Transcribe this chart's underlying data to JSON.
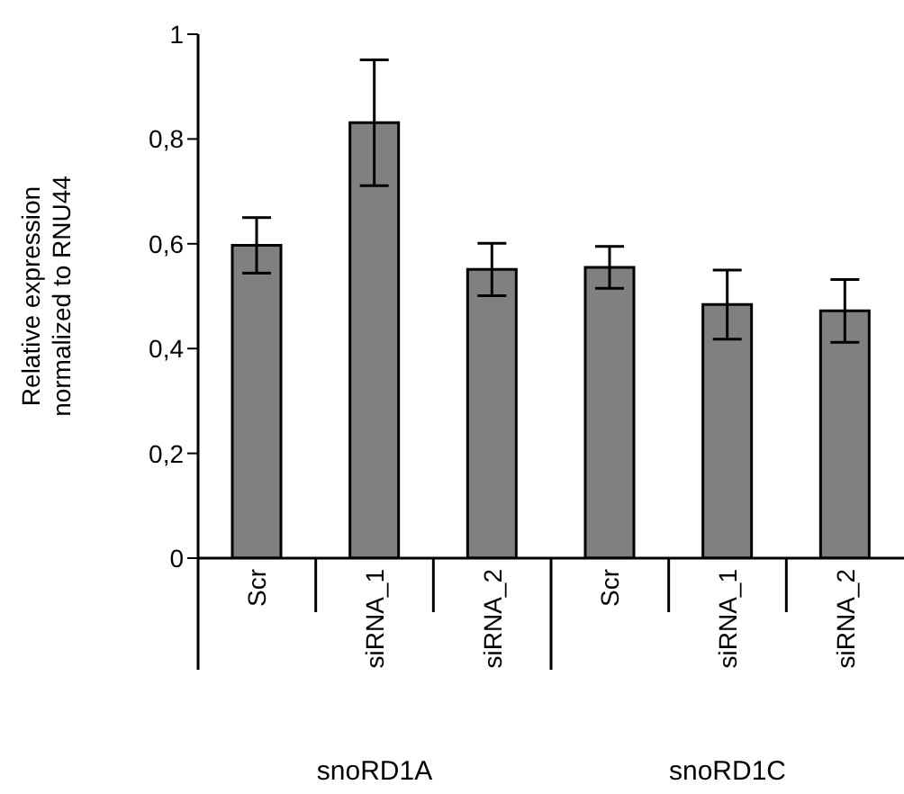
{
  "chart_data": {
    "type": "bar",
    "ylabel": "Relative expression normalized to RNU44",
    "categories": [
      "Scr",
      "siRNA_1",
      "siRNA_2",
      "Scr",
      "siRNA_1",
      "siRNA_2"
    ],
    "values": [
      0.597,
      0.831,
      0.551,
      0.555,
      0.484,
      0.472
    ],
    "errors": [
      0.053,
      0.12,
      0.05,
      0.04,
      0.066,
      0.06
    ],
    "color": "#808080",
    "ylim": [
      0,
      1
    ],
    "yticks": [
      0,
      {
        "value": 0.2,
        "label": "0,2"
      },
      {
        "value": 0.4,
        "label": "0,4"
      },
      {
        "value": 0.6,
        "label": "0,6"
      },
      {
        "value": 0.8,
        "label": "0,8"
      },
      1
    ],
    "grid": false,
    "legend": false,
    "annotations": [
      "snoRD1A",
      "snoRD1C"
    ]
  }
}
